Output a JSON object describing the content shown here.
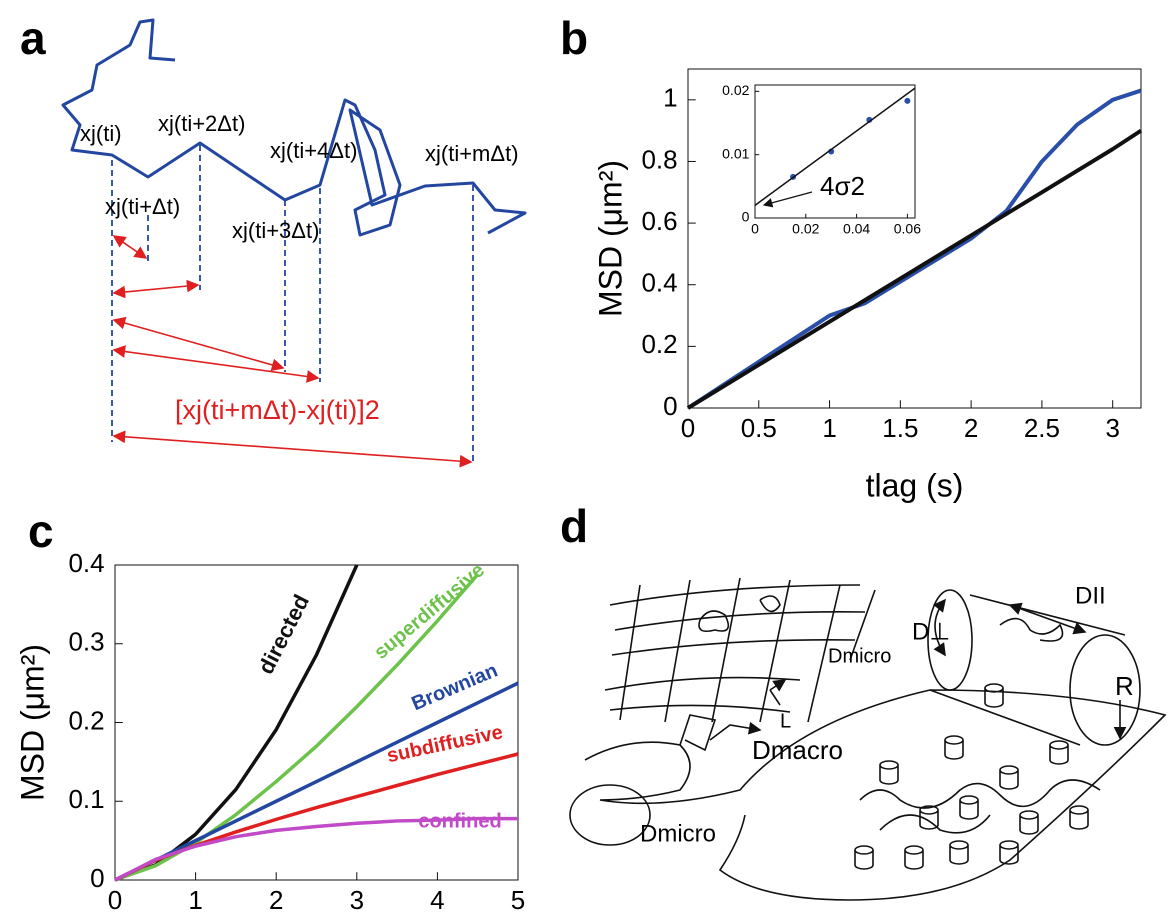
{
  "panels": {
    "a": {
      "letter": "a",
      "labels": [
        "xj(ti)",
        "xj(ti+2Δt)",
        "xj(ti+4Δt)",
        "xj(ti+mΔt)",
        "xj(ti+Δt)",
        "xj(ti+3Δt)"
      ],
      "formula": "[xj(ti+mΔt)-xj(ti)]2"
    },
    "b": {
      "letter": "b"
    },
    "c": {
      "letter": "c"
    },
    "d": {
      "letter": "d",
      "labels": [
        "Dmicro",
        "L",
        "D⊥",
        "DII",
        "R",
        "Dmacro",
        "Dmicro"
      ]
    }
  },
  "chart_data": [
    {
      "type": "line",
      "xlabel": "tlag (s)",
      "ylabel": "MSD (μm²)",
      "x": [
        0,
        0.5,
        1,
        1.25,
        1.5,
        2,
        2.25,
        2.5,
        2.75,
        3,
        3.2
      ],
      "series": [
        {
          "color": "#2a4fa8",
          "values": [
            0,
            0.15,
            0.3,
            0.34,
            0.41,
            0.55,
            0.64,
            0.8,
            0.92,
            1.0,
            1.03
          ]
        },
        {
          "color": "#111111",
          "values": [
            0,
            0.14,
            0.28,
            0.35,
            0.42,
            0.56,
            0.63,
            0.7,
            0.77,
            0.84,
            0.9
          ]
        }
      ],
      "xlim": [
        0,
        3.2
      ],
      "ylim": [
        0,
        1.1
      ],
      "xticks": [
        0,
        0.5,
        1,
        1.5,
        2,
        2.5,
        3
      ],
      "yticks": [
        0,
        0.2,
        0.4,
        0.6,
        0.8,
        1
      ]
    },
    {
      "type": "line",
      "annotation": "4σ2",
      "series": [
        {
          "color": "#2a4fa8",
          "markers": true,
          "x": [
            0.015,
            0.03,
            0.045,
            0.06
          ],
          "values": [
            0.0065,
            0.0105,
            0.0155,
            0.0185
          ]
        },
        {
          "color": "#111111",
          "x": [
            0,
            0.063
          ],
          "values": [
            0.002,
            0.0205
          ]
        }
      ],
      "xlim": [
        0,
        0.063
      ],
      "ylim": [
        0,
        0.021
      ],
      "xticks": [
        0,
        0.02,
        0.04,
        0.06
      ],
      "yticks": [
        0,
        0.01,
        0.02
      ]
    },
    {
      "type": "line",
      "ylabel": "MSD (μm²)",
      "x": [
        0,
        0.5,
        1,
        1.5,
        2,
        2.5,
        3,
        3.5,
        4,
        4.5,
        5
      ],
      "series": [
        {
          "name": "directed",
          "color": "#111111",
          "values": [
            0,
            0.019,
            0.058,
            0.115,
            0.191,
            0.286,
            0.4,
            null,
            null,
            null,
            null
          ]
        },
        {
          "name": "superdiffusive",
          "color": "#6cc24a",
          "values": [
            0,
            0.018,
            0.047,
            0.083,
            0.125,
            0.17,
            0.22,
            0.273,
            0.329,
            0.388,
            null
          ]
        },
        {
          "name": "Brownian",
          "color": "#2347a0",
          "values": [
            0,
            0.025,
            0.05,
            0.075,
            0.1,
            0.125,
            0.15,
            0.175,
            0.2,
            0.225,
            0.25
          ]
        },
        {
          "name": "subdiffusive",
          "color": "#e02020",
          "values": [
            0,
            0.025,
            0.044,
            0.061,
            0.077,
            0.092,
            0.106,
            0.12,
            0.134,
            0.147,
            0.16
          ]
        },
        {
          "name": "confined",
          "color": "#c04ac8",
          "values": [
            0,
            0.026,
            0.043,
            0.055,
            0.063,
            0.068,
            0.072,
            0.075,
            0.076,
            0.078,
            0.078
          ]
        }
      ],
      "xlim": [
        0,
        5
      ],
      "ylim": [
        0,
        0.4
      ],
      "xticks": [
        0,
        1,
        2,
        3,
        4,
        5
      ],
      "yticks": [
        0,
        0.1,
        0.2,
        0.3,
        0.4
      ]
    }
  ]
}
